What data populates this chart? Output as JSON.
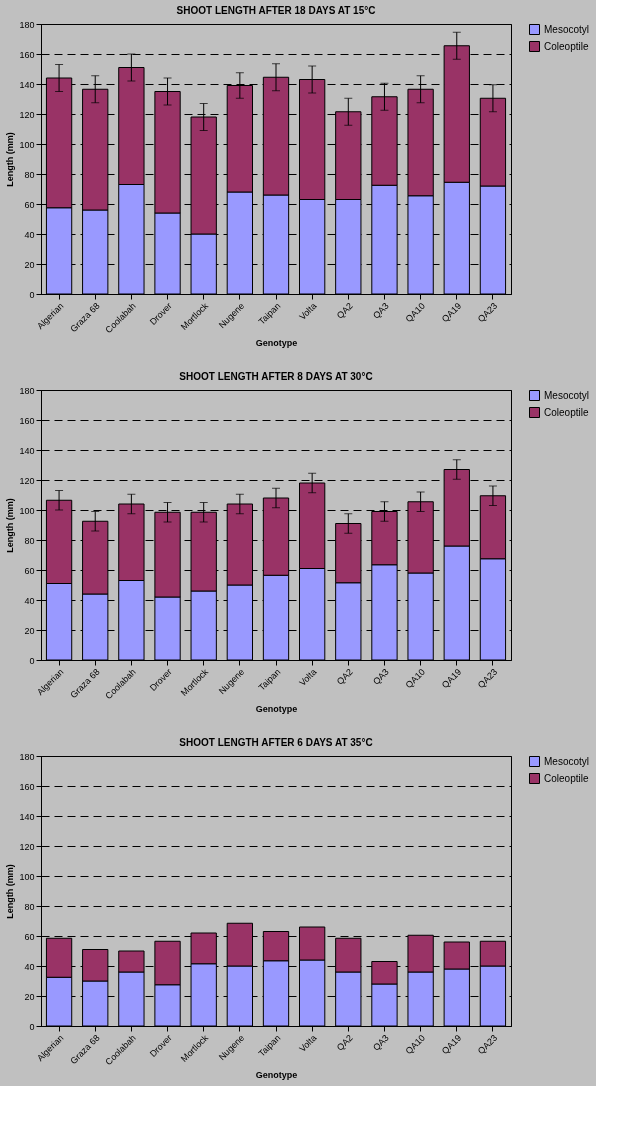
{
  "chart_data": [
    {
      "type": "bar",
      "title": "SHOOT LENGTH AFTER 18 DAYS AT 15°C",
      "xlabel": "Genotype",
      "ylabel": "Length (mm)",
      "stacked": true,
      "categories": [
        "Algerian",
        "Graza 68",
        "Coolabah",
        "Drover",
        "Mortlock",
        "Nugene",
        "Taipan",
        "Volta",
        "QA2",
        "QA3",
        "QA10",
        "QA19",
        "QA23"
      ],
      "series": [
        {
          "name": "Mesocotyl",
          "color": "#9999ff",
          "values": [
            57.5,
            56,
            73,
            54,
            40,
            68,
            66,
            63,
            63,
            72.5,
            65.5,
            74.5,
            72
          ]
        },
        {
          "name": "Coleoptile",
          "color": "#993366",
          "values": [
            86.5,
            80.5,
            78,
            81,
            78,
            71,
            78.5,
            80,
            58.5,
            59,
            71,
            91,
            58.5
          ],
          "errors": [
            9,
            9,
            9,
            9,
            9,
            8.5,
            9,
            9,
            9,
            9,
            9,
            9,
            9
          ]
        }
      ],
      "ylim": [
        0,
        180
      ],
      "yticks": [
        0,
        20,
        40,
        60,
        80,
        100,
        120,
        140,
        160,
        180
      ],
      "grid": "y",
      "legend": "right"
    },
    {
      "type": "bar",
      "title": "SHOOT LENGTH AFTER 8 DAYS AT 30°C",
      "xlabel": "Genotype",
      "ylabel": "Length (mm)",
      "stacked": true,
      "categories": [
        "Algerian",
        "Graza 68",
        "Coolabah",
        "Drover",
        "Mortlock",
        "Nugene",
        "Taipan",
        "Volta",
        "QA2",
        "QA3",
        "QA10",
        "QA19",
        "QA23"
      ],
      "series": [
        {
          "name": "Mesocotyl",
          "color": "#9999ff",
          "values": [
            51,
            44,
            53,
            42,
            46,
            50,
            56.5,
            61,
            51.5,
            63.5,
            58,
            76,
            67.5
          ]
        },
        {
          "name": "Coleoptile",
          "color": "#993366",
          "values": [
            55.5,
            48.5,
            51,
            56.5,
            52.5,
            54,
            51.5,
            57,
            39.5,
            35.5,
            47.5,
            51,
            42
          ],
          "errors": [
            6.5,
            6.5,
            6.5,
            6.5,
            6.5,
            6.5,
            6.5,
            6.5,
            6.5,
            6.5,
            6.5,
            6.5,
            6.5
          ]
        }
      ],
      "ylim": [
        0,
        180
      ],
      "yticks": [
        0,
        20,
        40,
        60,
        80,
        100,
        120,
        140,
        160,
        180
      ],
      "grid": "y",
      "legend": "right"
    },
    {
      "type": "bar",
      "title": "SHOOT LENGTH AFTER 6 DAYS AT 35°C",
      "xlabel": "Genotype",
      "ylabel": "Length (mm)",
      "stacked": true,
      "categories": [
        "Algerian",
        "Graza 68",
        "Coolabah",
        "Drover",
        "Mortlock",
        "Nugene",
        "Taipan",
        "Volta",
        "QA2",
        "QA3",
        "QA10",
        "QA19",
        "QA23"
      ],
      "series": [
        {
          "name": "Mesocotyl",
          "color": "#9999ff",
          "values": [
            32.5,
            30,
            36,
            27.5,
            41.5,
            40,
            43.5,
            44,
            36,
            28,
            36,
            38,
            40
          ]
        },
        {
          "name": "Coleoptile",
          "color": "#993366",
          "values": [
            26,
            21,
            14,
            29,
            20.5,
            28.5,
            19.5,
            22,
            22.5,
            15,
            24.5,
            18,
            16.5
          ]
        }
      ],
      "ylim": [
        0,
        180
      ],
      "yticks": [
        0,
        20,
        40,
        60,
        80,
        100,
        120,
        140,
        160,
        180
      ],
      "grid": "y",
      "legend": "right"
    }
  ]
}
